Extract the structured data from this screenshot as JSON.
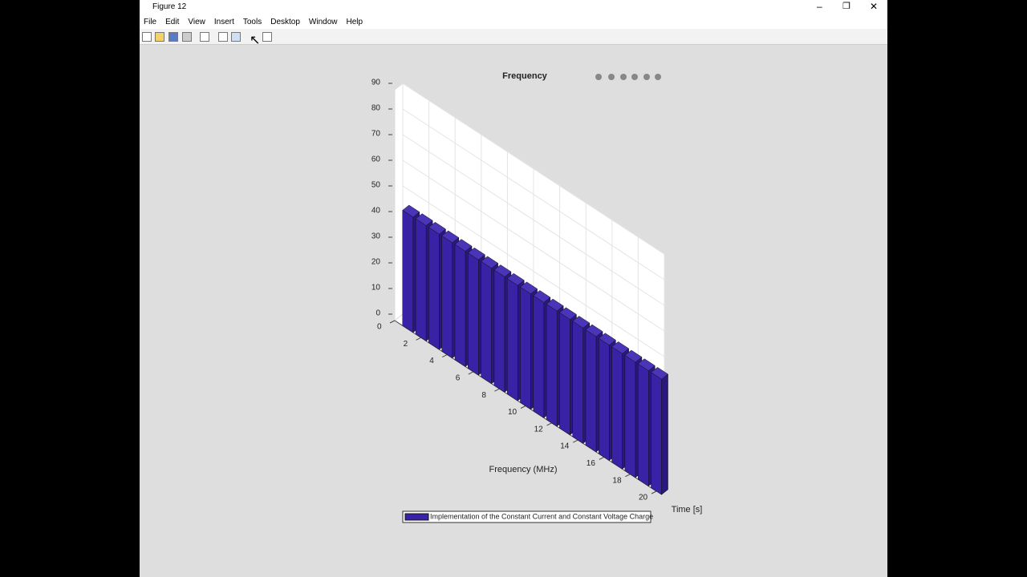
{
  "window": {
    "title": "Figure 12",
    "menu": [
      "File",
      "Edit",
      "View",
      "Insert",
      "Tools",
      "Desktop",
      "Window",
      "Help"
    ]
  },
  "chart_data": {
    "type": "bar3",
    "title": "Frequency",
    "xlabel": "Frequency (MHz)",
    "ylabel": "Time [s]",
    "x": [
      1,
      2,
      3,
      4,
      5,
      6,
      7,
      8,
      9,
      10,
      11,
      12,
      13,
      14,
      15,
      16,
      17,
      18,
      19,
      20
    ],
    "values": [
      45,
      45,
      45,
      45,
      45,
      45,
      45,
      45,
      45,
      45,
      45,
      45,
      45,
      45,
      45,
      45,
      45,
      45,
      45,
      45
    ],
    "color": "#3a22a6",
    "xlim": [
      0,
      20
    ],
    "xticks": [
      0,
      2,
      4,
      6,
      8,
      10,
      12,
      14,
      16,
      18,
      20
    ],
    "zlim": [
      0,
      90
    ],
    "zticks": [
      0,
      10,
      20,
      30,
      40,
      50,
      60,
      70,
      80,
      90
    ],
    "grid": true,
    "legend": "Implementation of the Constant Current and Constant Voltage Charge"
  }
}
